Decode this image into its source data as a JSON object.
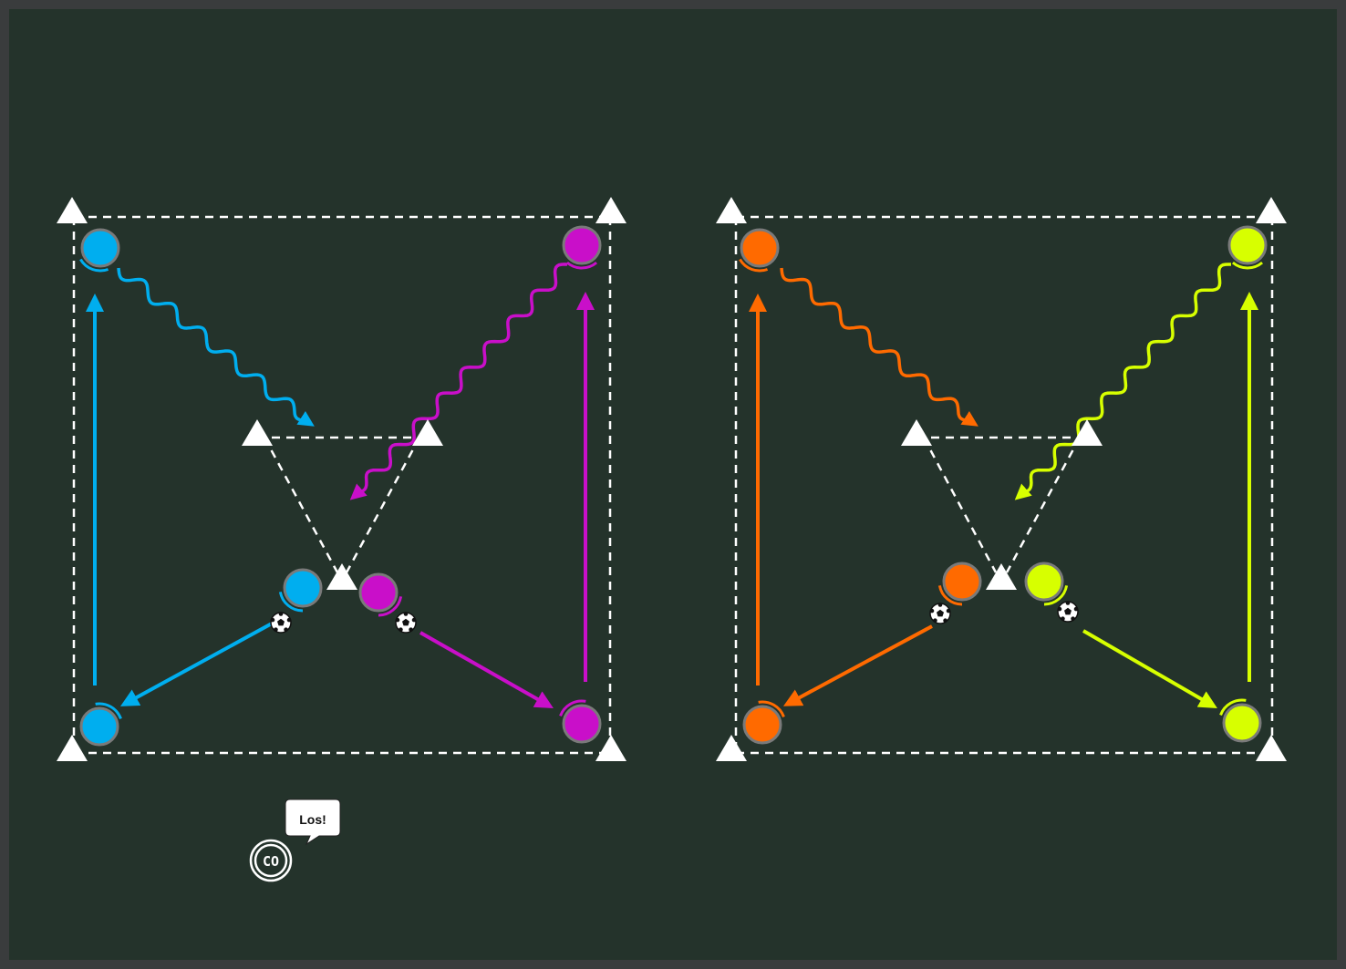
{
  "colors": {
    "field_background": "#24332b",
    "frame": "#3a3c3d",
    "lines": "#ffffff",
    "team_blue": "#00aeef",
    "team_magenta": "#c90fc9",
    "team_orange": "#ff6a00",
    "team_lime": "#d7ff00"
  },
  "icons": {
    "cone": "cone-icon",
    "ball": "soccer-ball-icon",
    "coach": "coach-icon"
  },
  "coach": {
    "label": "CO",
    "speech": "Los!"
  }
}
